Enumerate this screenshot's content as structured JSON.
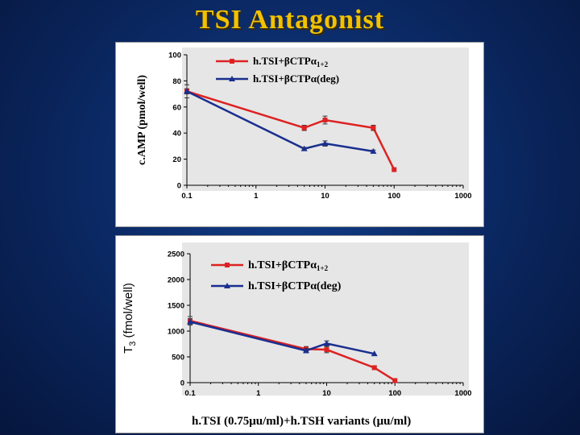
{
  "title": "TSI Antagonist",
  "colors": {
    "red": "#dd2222",
    "blue": "#1a2f8f",
    "title": "#f2c200",
    "plot_bg": "#e6e6e6"
  },
  "chart_data": [
    {
      "type": "line",
      "ylabel": "c.AMP (pmol/well)",
      "xlabel": "",
      "xscale": "log",
      "xlim": [
        0.1,
        1000
      ],
      "ylim": [
        0,
        100
      ],
      "xticks": [
        "0.1",
        "1",
        "10",
        "100",
        "1000"
      ],
      "yticks": [
        "0",
        "20",
        "40",
        "60",
        "80",
        "100"
      ],
      "legend_position": "top-right",
      "series": [
        {
          "name": "h.TSI+βCTPα1+2",
          "color": "#dd2222",
          "marker": "square",
          "x": [
            0.1,
            5,
            10,
            50,
            100
          ],
          "y": [
            72,
            44,
            50,
            44,
            12
          ],
          "err": [
            2,
            2,
            3,
            2,
            0
          ]
        },
        {
          "name": "h.TSI+βCTPα(deg)",
          "color": "#1a2f8f",
          "marker": "triangle",
          "x": [
            0.1,
            5,
            10,
            50
          ],
          "y": [
            72,
            28,
            32,
            26
          ],
          "err": [
            5,
            1,
            2,
            1
          ]
        }
      ]
    },
    {
      "type": "line",
      "ylabel": "T3 (fmol/well)",
      "xlabel": "h.TSI (0.75μu/ml)+h.TSH variants (μu/ml)",
      "xscale": "log",
      "xlim": [
        0.1,
        1000
      ],
      "ylim": [
        0,
        2500
      ],
      "xticks": [
        "0.1",
        "1",
        "10",
        "100",
        "1000"
      ],
      "yticks": [
        "0",
        "500",
        "1000",
        "1500",
        "2000",
        "2500"
      ],
      "legend_position": "top-right",
      "series": [
        {
          "name": "h.TSI+βCTPα1+2",
          "color": "#dd2222",
          "marker": "square",
          "x": [
            0.1,
            5,
            10,
            50,
            100
          ],
          "y": [
            1200,
            650,
            640,
            290,
            40
          ],
          "err": [
            80,
            50,
            60,
            30,
            0
          ]
        },
        {
          "name": "h.TSI+βCTPα(deg)",
          "color": "#1a2f8f",
          "marker": "triangle",
          "x": [
            0.1,
            5,
            10,
            50
          ],
          "y": [
            1180,
            620,
            760,
            560
          ],
          "err": [
            60,
            40,
            50,
            0
          ]
        }
      ]
    }
  ]
}
